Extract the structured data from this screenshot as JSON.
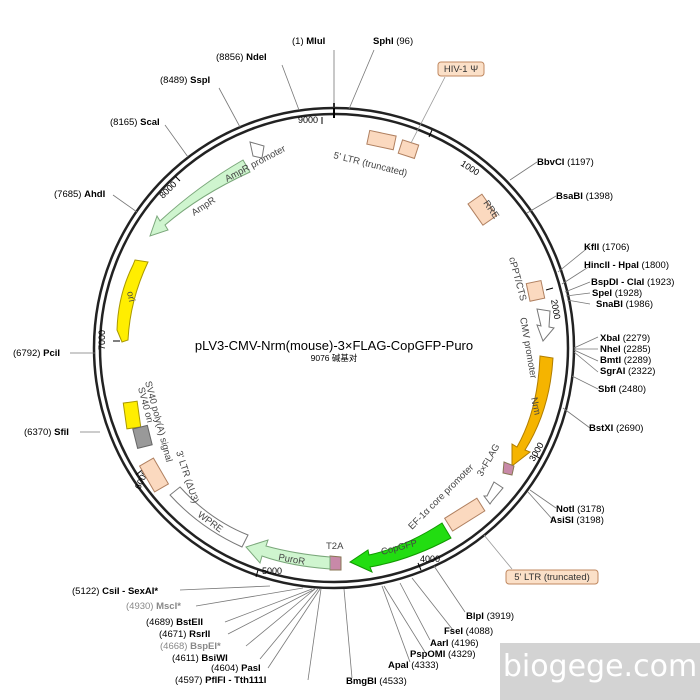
{
  "title": "pLV3-CMV-Nrm(mouse)-3×FLAG-CopGFP-Puro",
  "subtitle": "9076 碱基对",
  "watermark": "biogege.com",
  "ticks": [
    "1000",
    "2000",
    "3000",
    "4000",
    "5000",
    "6000",
    "7000",
    "8000",
    "9000"
  ],
  "features": {
    "ltr5_label": "5' LTR (truncated)",
    "hiv_label": "HIV-1 Ψ",
    "rre": "RRE",
    "cppt": "cPPT/CTS",
    "cmv": "CMV promoter",
    "nrm": "Nrm",
    "flag": "3×FLAG",
    "ef1a": "EF-1α core promoter",
    "ltr5_callout": "5' LTR (truncated)",
    "copgfp": "CopGFP",
    "t2a": "T2A",
    "puror": "PuroR",
    "wpre": "WPRE",
    "ltr3": "3' LTR (ΔU3)",
    "sv40pa": "SV40 poly(A) signal",
    "sv40ori": "SV40 ori",
    "ori": "ori",
    "ampr": "AmpR",
    "amprprom": "AmpR promoter"
  },
  "sites": {
    "mlui": {
      "name": "MluI",
      "pos": "(1)"
    },
    "sphi": {
      "name": "SphI",
      "pos": "(96)"
    },
    "ndei": {
      "name": "NdeI",
      "pos": "(8856)"
    },
    "sspi": {
      "name": "SspI",
      "pos": "(8489)"
    },
    "scai": {
      "name": "ScaI",
      "pos": "(8165)"
    },
    "ahdi": {
      "name": "AhdI",
      "pos": "(7685)"
    },
    "pcii": {
      "name": "PciI",
      "pos": "(6792)"
    },
    "sfii": {
      "name": "SfiI",
      "pos": "(6370)"
    },
    "bbvci": {
      "name": "BbvCI",
      "pos": "(1197)"
    },
    "bsabi": {
      "name": "BsaBI",
      "pos": "(1398)"
    },
    "kfli": {
      "name": "KflI",
      "pos": "(1706)"
    },
    "hincii": {
      "name": "HincII - HpaI",
      "pos": "(1800)"
    },
    "bspdi": {
      "name": "BspDI - ClaI",
      "pos": "(1923)"
    },
    "spei": {
      "name": "SpeI",
      "pos": "(1928)"
    },
    "snabi": {
      "name": "SnaBI",
      "pos": "(1986)"
    },
    "xbai": {
      "name": "XbaI",
      "pos": "(2279)"
    },
    "nhei": {
      "name": "NheI",
      "pos": "(2285)"
    },
    "bmti": {
      "name": "BmtI",
      "pos": "(2289)"
    },
    "sgrai": {
      "name": "SgrAI",
      "pos": "(2322)"
    },
    "sbfi": {
      "name": "SbfI",
      "pos": "(2480)"
    },
    "bstxi": {
      "name": "BstXI",
      "pos": "(2690)"
    },
    "noti": {
      "name": "NotI",
      "pos": "(3178)"
    },
    "asisi": {
      "name": "AsiSI",
      "pos": "(3198)"
    },
    "blpi": {
      "name": "BlpI",
      "pos": "(3919)"
    },
    "fsei": {
      "name": "FseI",
      "pos": "(4088)"
    },
    "aari": {
      "name": "AarI",
      "pos": "(4196)"
    },
    "pspomi": {
      "name": "PspOMI",
      "pos": "(4329)"
    },
    "apai": {
      "name": "ApaI",
      "pos": "(4333)"
    },
    "bmgbi": {
      "name": "BmgBI",
      "pos": "(4533)"
    },
    "csii": {
      "name": "CsiI - SexAI*",
      "pos": "(5122)"
    },
    "msci": {
      "name": "MscI*",
      "pos": "(4930)"
    },
    "bsteii": {
      "name": "BstEII",
      "pos": "(4689)"
    },
    "rsrii": {
      "name": "RsrII",
      "pos": "(4671)"
    },
    "bspei": {
      "name": "BspEI*",
      "pos": "(4668)"
    },
    "bsiwi": {
      "name": "BsiWI",
      "pos": "(4611)"
    },
    "pasi": {
      "name": "PasI",
      "pos": "(4604)"
    },
    "pflfi": {
      "name": "PflFI - Tth111I",
      "pos": "(4597)"
    }
  }
}
